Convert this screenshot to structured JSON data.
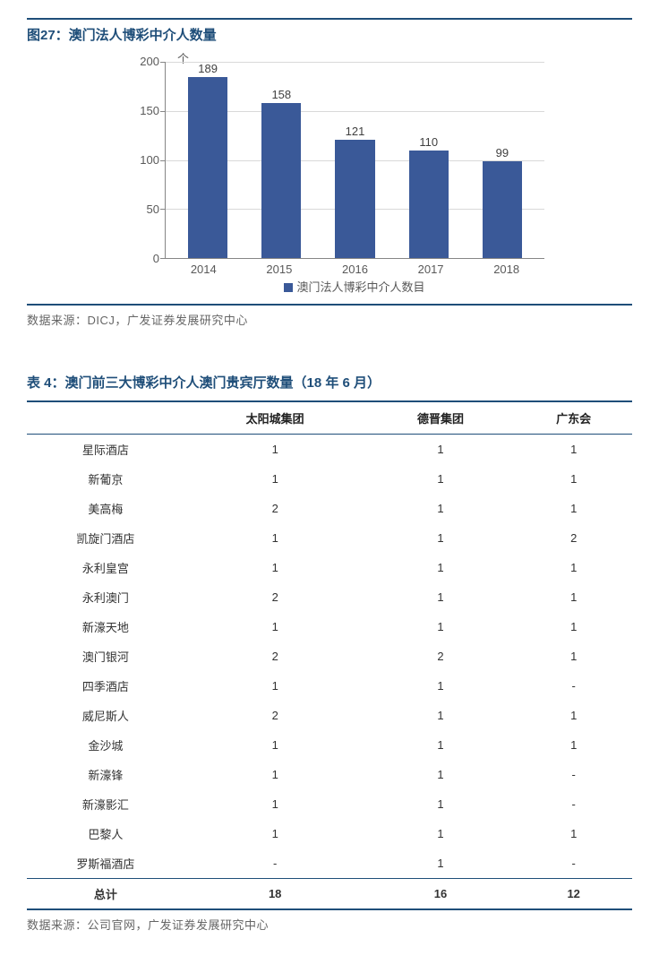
{
  "figure": {
    "title": "图27：澳门法人博彩中介人数量",
    "y_unit": "个",
    "chart": {
      "type": "bar",
      "categories": [
        "2014",
        "2015",
        "2016",
        "2017",
        "2018"
      ],
      "values": [
        189,
        158,
        121,
        110,
        99
      ],
      "bar_color": "#3a5998",
      "ylim_max": 200,
      "ytick_step": 50,
      "yticks": [
        "200",
        "150",
        "100",
        "50",
        "0"
      ],
      "axis_color": "#868686",
      "grid_color": "#d9d9d9",
      "label_color": "#595959",
      "label_fontsize": 13,
      "legend_label": "澳门法人博彩中介人数目"
    },
    "source": "数据来源：DICJ，广发证券发展研究中心"
  },
  "table": {
    "title": "表 4：澳门前三大博彩中介人澳门贵宾厅数量（18 年 6 月）",
    "columns": [
      "",
      "太阳城集团",
      "德晋集团",
      "广东会"
    ],
    "rows": [
      [
        "星际酒店",
        "1",
        "1",
        "1"
      ],
      [
        "新葡京",
        "1",
        "1",
        "1"
      ],
      [
        "美高梅",
        "2",
        "1",
        "1"
      ],
      [
        "凯旋门酒店",
        "1",
        "1",
        "2"
      ],
      [
        "永利皇宫",
        "1",
        "1",
        "1"
      ],
      [
        "永利澳门",
        "2",
        "1",
        "1"
      ],
      [
        "新濠天地",
        "1",
        "1",
        "1"
      ],
      [
        "澳门银河",
        "2",
        "2",
        "1"
      ],
      [
        "四季酒店",
        "1",
        "1",
        "-"
      ],
      [
        "威尼斯人",
        "2",
        "1",
        "1"
      ],
      [
        "金沙城",
        "1",
        "1",
        "1"
      ],
      [
        "新濠锋",
        "1",
        "1",
        "-"
      ],
      [
        "新濠影汇",
        "1",
        "1",
        "-"
      ],
      [
        "巴黎人",
        "1",
        "1",
        "1"
      ],
      [
        "罗斯福酒店",
        "-",
        "1",
        "-"
      ]
    ],
    "total_row": [
      "总计",
      "18",
      "16",
      "12"
    ],
    "source": "数据来源：公司官网，广发证券发展研究中心",
    "header_border_color": "#1f4e79",
    "fontsize": 13
  },
  "accent_color": "#1f4e79"
}
